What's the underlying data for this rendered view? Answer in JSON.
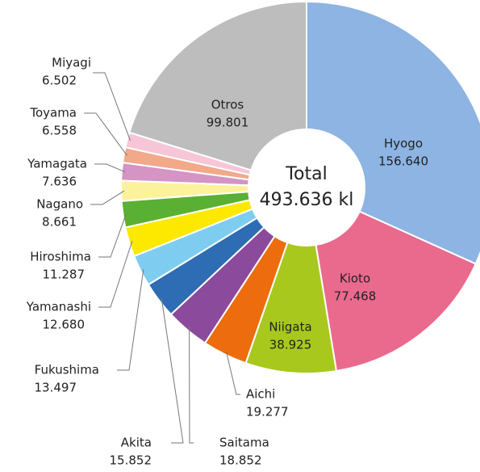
{
  "chart_data": {
    "type": "donut",
    "center_title": "Total",
    "center_value": "493.636 kl",
    "categories": [
      "Hyogo",
      "Kioto",
      "Niigata",
      "Aichi",
      "Saitama",
      "Akita",
      "Fukushima",
      "Yamanashi",
      "Hiroshima",
      "Nagano",
      "Yamagata",
      "Toyama",
      "Miyagi",
      "Otros"
    ],
    "values": [
      156640,
      77468,
      38925,
      19277,
      18852,
      15852,
      13497,
      12680,
      11287,
      8661,
      7636,
      6558,
      6502,
      99801
    ],
    "value_labels": [
      "156.640",
      "77.468",
      "38.925",
      "19.277",
      "18.852",
      "15.852",
      "13.497",
      "12.680",
      "11.287",
      "8.661",
      "7.636",
      "6.558",
      "6.502",
      "99.801"
    ],
    "colors": [
      "#8db4e2",
      "#ea6a8e",
      "#a8c81e",
      "#ec6c0e",
      "#8b4a9c",
      "#2e6db4",
      "#7ecdf0",
      "#fde800",
      "#5ab033",
      "#fdf29c",
      "#d494c4",
      "#f2a98a",
      "#f6c6d8",
      "#bdbdbd"
    ]
  }
}
